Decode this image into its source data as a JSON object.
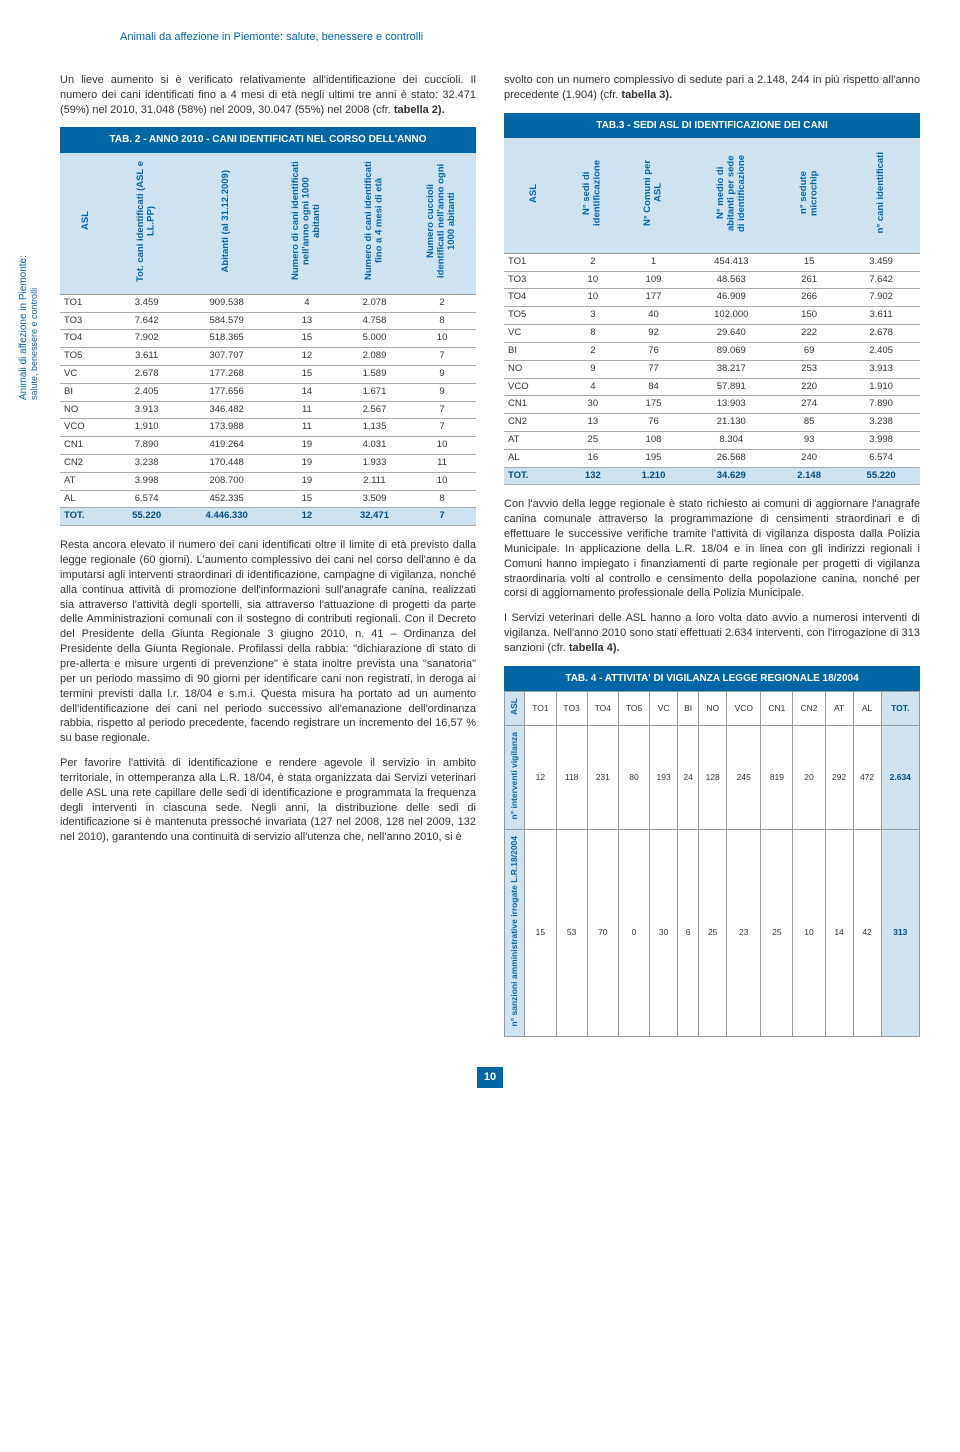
{
  "header": "Animali da affezione in Piemonte: salute, benessere e controlli",
  "side_label_l1": "Animali di affezione in Piemonte:",
  "side_label_l2": "salute, benessere e controlli",
  "intro1": "Un lieve aumento si è verificato relativamente all'identificazione dei cuccioli. Il numero dei cani identificati fino a 4 mesi di età negli ultimi tre anni è stato: 32.471 (59%) nel 2010, 31.048 (58%) nel 2009, 30.047 (55%) nel 2008 (cfr.",
  "intro1b": "tabella 2).",
  "tab2": {
    "title": "TAB. 2 - ANNO 2010 - CANI IDENTIFICATI NEL CORSO DELL'ANNO",
    "cols": [
      "ASL",
      "Tot. cani identificati (ASL e LL.PP)",
      "Abitanti (al 31.12.2009)",
      "Numero di cani identificati nell'anno ogni 1000 abitanti",
      "Numero di cani identificati fino a 4 mesi di età",
      "Numero cuccioli identificati nell'anno ogni 1000 abitanti"
    ],
    "rows": [
      [
        "TO1",
        "3.459",
        "909.538",
        "4",
        "2.078",
        "2"
      ],
      [
        "TO3",
        "7.642",
        "584.579",
        "13",
        "4.758",
        "8"
      ],
      [
        "TO4",
        "7.902",
        "518.365",
        "15",
        "5.000",
        "10"
      ],
      [
        "TO5",
        "3.611",
        "307.707",
        "12",
        "2.089",
        "7"
      ],
      [
        "VC",
        "2.678",
        "177.268",
        "15",
        "1.589",
        "9"
      ],
      [
        "BI",
        "2.405",
        "177.656",
        "14",
        "1.671",
        "9"
      ],
      [
        "NO",
        "3.913",
        "346.482",
        "11",
        "2.567",
        "7"
      ],
      [
        "VCO",
        "1.910",
        "173.988",
        "11",
        "1.135",
        "7"
      ],
      [
        "CN1",
        "7.890",
        "419.264",
        "19",
        "4.031",
        "10"
      ],
      [
        "CN2",
        "3.238",
        "170.448",
        "19",
        "1.933",
        "11"
      ],
      [
        "AT",
        "3.998",
        "208.700",
        "19",
        "2.111",
        "10"
      ],
      [
        "AL",
        "6.574",
        "452.335",
        "15",
        "3.509",
        "8"
      ]
    ],
    "tot": [
      "TOT.",
      "55.220",
      "4.446.330",
      "12",
      "32.471",
      "7"
    ]
  },
  "para2": "Resta ancora elevato il numero dei cani identificati oltre il limite di età previsto dalla legge regionale (60 giorni). L'aumento complessivo dei cani nel corso dell'anno è da imputarsi agli interventi straordinari di identificazione, campagne di vigilanza, nonché alla continua attività di promozione dell'informazioni sull'anagrafe canina, realizzati sia attraverso l'attività degli sportelli, sia attraverso l'attuazione di progetti da parte delle Amministrazioni comunali con il sostegno di contributi regionali. Con il Decreto del Presidente della Giunta Regionale 3 giugno 2010, n. 41 – Ordinanza del Presidente della Giunta Regionale. Profilassi della rabbia: \"dichiarazione di stato di pre-allerta e misure urgenti di prevenzione\" è stata inoltre prevista una \"sanatoria\" per un periodo massimo di 90 giorni per identificare cani non registrati, in deroga ai termini previsti dalla l.r. 18/04 e s.m.i. Questa misura ha portato ad un aumento dell'identificazione dei cani nel periodo successivo all'emanazione dell'ordinanza rabbia, rispetto al periodo precedente, facendo registrare un incremento del 16,57 % su base regionale.",
  "para3": "Per favorire l'attività di identificazione e rendere agevole il servizio in ambito territoriale, in ottemperanza alla L.R. 18/04, è stata organizzata dai Servizi veterinari delle ASL una rete capillare delle sedi di identificazione e programmata la frequenza degli interventi in ciascuna sede. Negli anni, la distribuzione delle sedi di identificazione si è mantenuta pressoché invariata (127 nel 2008, 128 nel 2009, 132 nel 2010), garantendo una continuità di servizio all'utenza che, nell'anno 2010, si è",
  "col2_intro": "svolto con un numero complessivo di sedute pari a 2.148, 244 in più rispetto all'anno precedente (1.904) (cfr.",
  "col2_introb": "tabella 3).",
  "tab3": {
    "title": "TAB.3  - SEDI ASL DI IDENTIFICAZIONE DEI CANI",
    "cols": [
      "ASL",
      "N° sedi di identificazione",
      "N° Comuni per ASL",
      "N° medio di abitanti per sede di identificazione",
      "n° sedute microchip",
      "n° cani identificati"
    ],
    "rows": [
      [
        "TO1",
        "2",
        "1",
        "454.413",
        "15",
        "3.459"
      ],
      [
        "TO3",
        "10",
        "109",
        "48.563",
        "261",
        "7.642"
      ],
      [
        "TO4",
        "10",
        "177",
        "46.909",
        "266",
        "7.902"
      ],
      [
        "TO5",
        "3",
        "40",
        "102.000",
        "150",
        "3.611"
      ],
      [
        "VC",
        "8",
        "92",
        "29.640",
        "222",
        "2.678"
      ],
      [
        "BI",
        "2",
        "76",
        "89.069",
        "69",
        "2.405"
      ],
      [
        "NO",
        "9",
        "77",
        "38.217",
        "253",
        "3.913"
      ],
      [
        "VCO",
        "4",
        "84",
        "57.891",
        "220",
        "1.910"
      ],
      [
        "CN1",
        "30",
        "175",
        "13.903",
        "274",
        "7.890"
      ],
      [
        "CN2",
        "13",
        "76",
        "21.130",
        "85",
        "3.238"
      ],
      [
        "AT",
        "25",
        "108",
        "8.304",
        "93",
        "3.998"
      ],
      [
        "AL",
        "16",
        "195",
        "26.568",
        "240",
        "6.574"
      ]
    ],
    "tot": [
      "TOT.",
      "132",
      "1.210",
      "34.629",
      "2.148",
      "55.220"
    ]
  },
  "para4": "Con l'avvio della legge regionale è stato richiesto ai comuni di aggiornare l'anagrafe canina comunale attraverso la programmazione di censimenti straordinari e di effettuare le successive verifiche tramite l'attività di vigilanza disposta dalla Polizia Municipale. In applicazione della L.R. 18/04 e in linea con gli indirizzi regionali i Comuni hanno impiegato i finanziamenti di parte regionale per progetti di vigilanza straordinaria volti al controllo e censimento della popolazione canina, nonché per corsi di aggiornamento professionale della Polizia Municipale.",
  "para5a": "I Servizi veterinari delle ASL hanno a loro volta dato avvio a numerosi interventi di vigilanza. Nell'anno 2010 sono stati effettuati 2.634 interventi, con l'irrogazione di 313 sanzioni (cfr.",
  "para5b": "tabella 4).",
  "tab4": {
    "title": "TAB. 4  - ATTIVITA' DI VIGILANZA LEGGE REGIONALE 18/2004",
    "rowA": "ASL",
    "cols": [
      "TO1",
      "TO3",
      "TO4",
      "TO5",
      "VC",
      "BI",
      "NO",
      "VCO",
      "CN1",
      "CN2",
      "AT",
      "AL",
      "TOT."
    ],
    "rowB": "n° interventi vigilanza",
    "valsB": [
      "12",
      "118",
      "231",
      "80",
      "193",
      "24",
      "128",
      "245",
      "819",
      "20",
      "292",
      "472",
      "2.634"
    ],
    "rowC": "n° sanzioni amministrative irrogate L.R.18/2004",
    "valsC": [
      "15",
      "53",
      "70",
      "0",
      "30",
      "6",
      "25",
      "23",
      "25",
      "10",
      "14",
      "42",
      "313"
    ]
  },
  "page_num": "10",
  "colors": {
    "brand": "#0066a4",
    "header_bg": "#cfe2f0"
  }
}
